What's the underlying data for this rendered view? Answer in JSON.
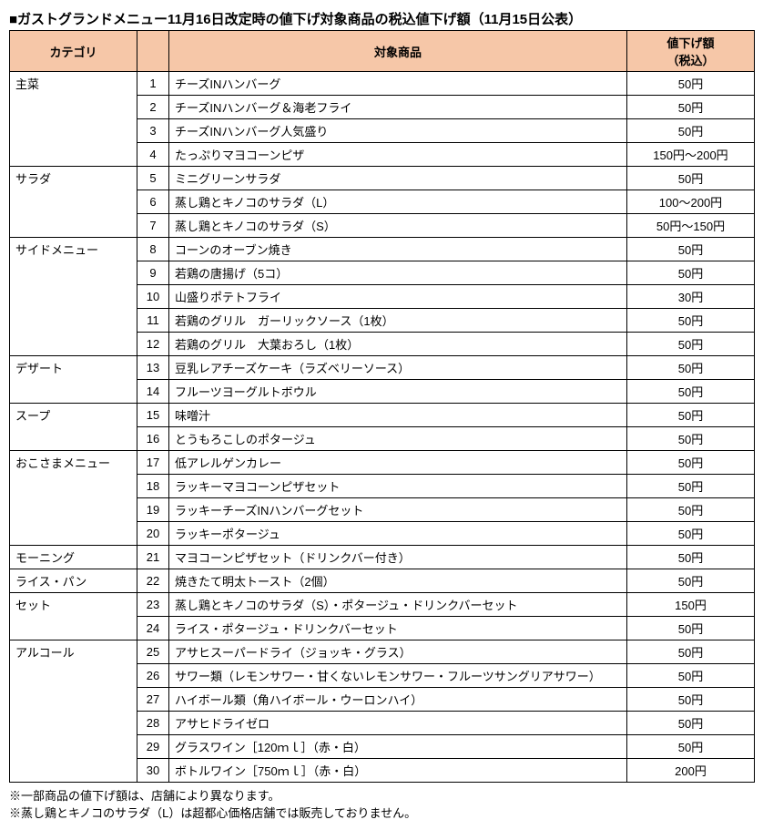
{
  "title": "■ガストグランドメニュー11月16日改定時の値下げ対象商品の税込値下げ額（11月15日公表）",
  "columns": {
    "category": "カテゴリ",
    "num": "",
    "item": "対象商品",
    "amount": "値下げ額\n（税込）"
  },
  "categories": [
    {
      "name": "主菜",
      "rows": [
        {
          "n": "1",
          "item": "チーズINハンバーグ",
          "amt": "50円"
        },
        {
          "n": "2",
          "item": "チーズINハンバーグ＆海老フライ",
          "amt": "50円"
        },
        {
          "n": "3",
          "item": "チーズINハンバーグ人気盛り",
          "amt": "50円"
        },
        {
          "n": "4",
          "item": "たっぷりマヨコーンピザ",
          "amt": "150円～200円"
        }
      ]
    },
    {
      "name": "サラダ",
      "rows": [
        {
          "n": "5",
          "item": "ミニグリーンサラダ",
          "amt": "50円"
        },
        {
          "n": "6",
          "item": "蒸し鶏とキノコのサラダ（L）",
          "amt": "100～200円"
        },
        {
          "n": "7",
          "item": "蒸し鶏とキノコのサラダ（S）",
          "amt": "50円～150円"
        }
      ]
    },
    {
      "name": "サイドメニュー",
      "rows": [
        {
          "n": "8",
          "item": "コーンのオーブン焼き",
          "amt": "50円"
        },
        {
          "n": "9",
          "item": "若鶏の唐揚げ（5コ）",
          "amt": "50円"
        },
        {
          "n": "10",
          "item": "山盛りポテトフライ",
          "amt": "30円"
        },
        {
          "n": "11",
          "item": "若鶏のグリル　ガーリックソース（1枚）",
          "amt": "50円"
        },
        {
          "n": "12",
          "item": "若鶏のグリル　大葉おろし（1枚）",
          "amt": "50円"
        }
      ]
    },
    {
      "name": "デザート",
      "rows": [
        {
          "n": "13",
          "item": "豆乳レアチーズケーキ（ラズベリーソース）",
          "amt": "50円"
        },
        {
          "n": "14",
          "item": "フルーツヨーグルトボウル",
          "amt": "50円"
        }
      ]
    },
    {
      "name": "スープ",
      "rows": [
        {
          "n": "15",
          "item": "味噌汁",
          "amt": "50円"
        },
        {
          "n": "16",
          "item": "とうもろこしのポタージュ",
          "amt": "50円"
        }
      ]
    },
    {
      "name": "おこさまメニュー",
      "rows": [
        {
          "n": "17",
          "item": "低アレルゲンカレー",
          "amt": "50円"
        },
        {
          "n": "18",
          "item": "ラッキーマヨコーンピザセット",
          "amt": "50円"
        },
        {
          "n": "19",
          "item": "ラッキーチーズINハンバーグセット",
          "amt": "50円"
        },
        {
          "n": "20",
          "item": "ラッキーポタージュ",
          "amt": "50円"
        }
      ]
    },
    {
      "name": "モーニング",
      "rows": [
        {
          "n": "21",
          "item": "マヨコーンピザセット（ドリンクバー付き）",
          "amt": "50円"
        }
      ]
    },
    {
      "name": "ライス・パン",
      "rows": [
        {
          "n": "22",
          "item": "焼きたて明太トースト（2個）",
          "amt": "50円"
        }
      ]
    },
    {
      "name": "セット",
      "rows": [
        {
          "n": "23",
          "item": "蒸し鶏とキノコのサラダ（S）・ポタージュ・ドリンクバーセット",
          "amt": "150円"
        },
        {
          "n": "24",
          "item": "ライス・ポタージュ・ドリンクバーセット",
          "amt": "50円"
        }
      ]
    },
    {
      "name": "アルコール",
      "rows": [
        {
          "n": "25",
          "item": "アサヒスーパードライ（ジョッキ・グラス）",
          "amt": "50円"
        },
        {
          "n": "26",
          "item": "サワー類（レモンサワー・甘くないレモンサワー・フルーツサングリアサワー）",
          "amt": "50円"
        },
        {
          "n": "27",
          "item": "ハイボール類（角ハイボール・ウーロンハイ）",
          "amt": "50円"
        },
        {
          "n": "28",
          "item": "アサヒドライゼロ",
          "amt": "50円"
        },
        {
          "n": "29",
          "item": "グラスワイン［120ｍｌ］（赤・白）",
          "amt": "50円"
        },
        {
          "n": "30",
          "item": "ボトルワイン［750ｍｌ］（赤・白）",
          "amt": "200円"
        }
      ]
    }
  ],
  "notes": [
    "※一部商品の値下げ額は、店舗により異なります。",
    "※蒸し鶏とキノコのサラダ（L）は超都心価格店舗では販売しておりません。"
  ]
}
